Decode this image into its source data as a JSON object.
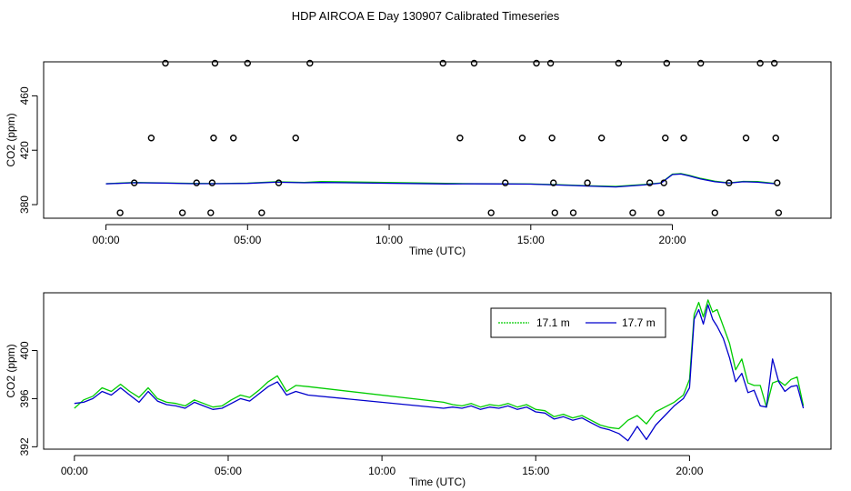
{
  "page": {
    "title": "HDP AIRCOA E  Day 130907  Calibrated Timeseries"
  },
  "chart_data": [
    {
      "type": "scatter",
      "xlabel": "Time (UTC)",
      "ylabel": "CO2 (ppm)",
      "xlim": [
        -2.2,
        25.6
      ],
      "ylim": [
        370,
        485
      ],
      "x_ticks": [
        0,
        5,
        10,
        15,
        20
      ],
      "x_tick_labels": [
        "00:00",
        "05:00",
        "10:00",
        "15:00",
        "20:00"
      ],
      "y_ticks": [
        380,
        420,
        460
      ],
      "y_tick_labels": [
        "380",
        "420",
        "460"
      ],
      "grid": false,
      "scatter_points": [
        {
          "x": 0.5,
          "y": 374
        },
        {
          "x": 1.0,
          "y": 396
        },
        {
          "x": 1.6,
          "y": 429
        },
        {
          "x": 2.1,
          "y": 484
        },
        {
          "x": 2.7,
          "y": 374
        },
        {
          "x": 3.2,
          "y": 396
        },
        {
          "x": 3.7,
          "y": 374
        },
        {
          "x": 3.75,
          "y": 396
        },
        {
          "x": 3.8,
          "y": 429
        },
        {
          "x": 3.85,
          "y": 484
        },
        {
          "x": 4.5,
          "y": 429
        },
        {
          "x": 5.0,
          "y": 484
        },
        {
          "x": 5.5,
          "y": 374
        },
        {
          "x": 6.1,
          "y": 396
        },
        {
          "x": 6.7,
          "y": 429
        },
        {
          "x": 7.2,
          "y": 484
        },
        {
          "x": 11.9,
          "y": 484
        },
        {
          "x": 12.5,
          "y": 429
        },
        {
          "x": 13.0,
          "y": 484
        },
        {
          "x": 13.6,
          "y": 374
        },
        {
          "x": 14.1,
          "y": 396
        },
        {
          "x": 14.7,
          "y": 429
        },
        {
          "x": 15.2,
          "y": 484
        },
        {
          "x": 15.7,
          "y": 484
        },
        {
          "x": 15.75,
          "y": 429
        },
        {
          "x": 15.8,
          "y": 396
        },
        {
          "x": 15.85,
          "y": 374
        },
        {
          "x": 16.5,
          "y": 374
        },
        {
          "x": 17.0,
          "y": 396
        },
        {
          "x": 17.5,
          "y": 429
        },
        {
          "x": 18.1,
          "y": 484
        },
        {
          "x": 18.6,
          "y": 374
        },
        {
          "x": 19.2,
          "y": 396
        },
        {
          "x": 19.6,
          "y": 374
        },
        {
          "x": 19.7,
          "y": 396
        },
        {
          "x": 19.75,
          "y": 429
        },
        {
          "x": 19.8,
          "y": 484
        },
        {
          "x": 20.4,
          "y": 429
        },
        {
          "x": 21.0,
          "y": 484
        },
        {
          "x": 21.5,
          "y": 374
        },
        {
          "x": 22.0,
          "y": 396
        },
        {
          "x": 22.6,
          "y": 429
        },
        {
          "x": 23.1,
          "y": 484
        },
        {
          "x": 23.6,
          "y": 484
        },
        {
          "x": 23.65,
          "y": 429
        },
        {
          "x": 23.7,
          "y": 396
        },
        {
          "x": 23.75,
          "y": 374
        }
      ],
      "series": [
        {
          "color": "#00cc00",
          "x": [
            0,
            1,
            2,
            3,
            4,
            5,
            6,
            7,
            7.6,
            12,
            13,
            14,
            15,
            16,
            17,
            18,
            19,
            19.6,
            20,
            20.3,
            20.6,
            21,
            21.5,
            22,
            22.5,
            23,
            23.6
          ],
          "y": [
            395.4,
            396.3,
            396.0,
            395.6,
            395.5,
            395.8,
            396.8,
            396.3,
            397.0,
            395.6,
            395.4,
            395.3,
            395.2,
            394.6,
            393.9,
            393.4,
            394.8,
            396.0,
            402.4,
            402.8,
            401.5,
            399.3,
            397.2,
            396.0,
            397.1,
            397.0,
            395.6
          ]
        },
        {
          "color": "#0000cc",
          "x": [
            0,
            1,
            2,
            3,
            4,
            5,
            6,
            7,
            7.6,
            12,
            13,
            14,
            15,
            16,
            17,
            18,
            19,
            19.6,
            20,
            20.3,
            20.6,
            21,
            21.5,
            22,
            22.5,
            23,
            23.6
          ],
          "y": [
            395.3,
            396.1,
            395.9,
            395.4,
            395.4,
            395.6,
            396.5,
            396.1,
            396.3,
            395.2,
            395.3,
            395.2,
            395.1,
            394.4,
            393.7,
            393.0,
            394.5,
            395.8,
            402.1,
            402.5,
            401.1,
            398.8,
            396.8,
            395.8,
            396.8,
            396.5,
            395.4
          ]
        }
      ]
    },
    {
      "type": "line",
      "xlabel": "Time (UTC)",
      "ylabel": "CO2 (ppm)",
      "xlim": [
        -1.0,
        24.6
      ],
      "ylim": [
        391.8,
        404.8
      ],
      "x_ticks": [
        0,
        5,
        10,
        15,
        20
      ],
      "x_tick_labels": [
        "00:00",
        "05:00",
        "10:00",
        "15:00",
        "20:00"
      ],
      "y_ticks": [
        392,
        396,
        400
      ],
      "y_tick_labels": [
        "392",
        "396",
        "400"
      ],
      "grid": false,
      "legend": "top-right",
      "series": [
        {
          "name": "17.1 m",
          "color": "#00cc00",
          "x": [
            0,
            0.3,
            0.6,
            0.9,
            1.2,
            1.5,
            1.8,
            2.1,
            2.4,
            2.7,
            3.0,
            3.3,
            3.6,
            3.9,
            4.2,
            4.5,
            4.8,
            5.1,
            5.4,
            5.7,
            6.0,
            6.3,
            6.6,
            6.9,
            7.2,
            7.6,
            12.0,
            12.3,
            12.6,
            12.9,
            13.2,
            13.5,
            13.8,
            14.1,
            14.4,
            14.7,
            15.0,
            15.3,
            15.6,
            15.9,
            16.2,
            16.5,
            16.8,
            17.1,
            17.4,
            17.7,
            18.0,
            18.3,
            18.6,
            18.9,
            19.2,
            19.5,
            19.8,
            20.0,
            20.15,
            20.3,
            20.45,
            20.6,
            20.75,
            20.9,
            21.1,
            21.3,
            21.5,
            21.7,
            21.9,
            22.1,
            22.3,
            22.5,
            22.7,
            22.9,
            23.1,
            23.3,
            23.5,
            23.7
          ],
          "y": [
            395.2,
            395.9,
            396.2,
            396.9,
            396.6,
            397.2,
            396.6,
            396.1,
            396.9,
            396.0,
            395.7,
            395.6,
            395.4,
            395.9,
            395.6,
            395.3,
            395.4,
            395.9,
            396.3,
            396.1,
            396.7,
            397.4,
            397.9,
            396.6,
            397.1,
            397.0,
            395.7,
            395.5,
            395.4,
            395.6,
            395.3,
            395.5,
            395.4,
            395.6,
            395.3,
            395.5,
            395.1,
            395.0,
            394.5,
            394.7,
            394.4,
            394.6,
            394.2,
            393.8,
            393.6,
            393.5,
            394.2,
            394.6,
            393.9,
            394.9,
            395.3,
            395.7,
            396.3,
            397.6,
            403.0,
            404.0,
            402.8,
            404.2,
            403.2,
            403.4,
            402.0,
            400.6,
            398.4,
            399.3,
            397.3,
            397.1,
            397.1,
            395.3,
            397.3,
            397.5,
            397.1,
            397.6,
            397.8,
            395.4
          ]
        },
        {
          "name": "17.7 m",
          "color": "#0000cc",
          "x": [
            0,
            0.3,
            0.6,
            0.9,
            1.2,
            1.5,
            1.8,
            2.1,
            2.4,
            2.7,
            3.0,
            3.3,
            3.6,
            3.9,
            4.2,
            4.5,
            4.8,
            5.1,
            5.4,
            5.7,
            6.0,
            6.3,
            6.6,
            6.9,
            7.2,
            7.6,
            12.0,
            12.3,
            12.6,
            12.9,
            13.2,
            13.5,
            13.8,
            14.1,
            14.4,
            14.7,
            15.0,
            15.3,
            15.6,
            15.9,
            16.2,
            16.5,
            16.8,
            17.1,
            17.4,
            17.7,
            18.0,
            18.3,
            18.6,
            18.9,
            19.2,
            19.5,
            19.8,
            20.0,
            20.15,
            20.3,
            20.45,
            20.6,
            20.75,
            20.9,
            21.1,
            21.3,
            21.5,
            21.7,
            21.9,
            22.1,
            22.3,
            22.5,
            22.7,
            22.9,
            23.1,
            23.3,
            23.5,
            23.7
          ],
          "y": [
            395.6,
            395.7,
            396.0,
            396.6,
            396.3,
            396.9,
            396.3,
            395.7,
            396.6,
            395.8,
            395.5,
            395.4,
            395.2,
            395.7,
            395.4,
            395.1,
            395.2,
            395.6,
            396.0,
            395.8,
            396.4,
            397.0,
            397.4,
            396.3,
            396.6,
            396.3,
            395.2,
            395.3,
            395.2,
            395.4,
            395.1,
            395.3,
            395.2,
            395.4,
            395.1,
            395.3,
            394.9,
            394.8,
            394.3,
            394.5,
            394.2,
            394.4,
            394.0,
            393.6,
            393.4,
            393.1,
            392.5,
            393.7,
            392.6,
            393.8,
            394.6,
            395.4,
            396.0,
            396.9,
            402.6,
            403.4,
            402.2,
            403.8,
            402.6,
            402.0,
            401.0,
            399.4,
            397.4,
            398.1,
            396.5,
            396.7,
            395.4,
            395.3,
            399.3,
            397.4,
            396.6,
            397.0,
            397.1,
            395.2
          ]
        }
      ]
    }
  ]
}
